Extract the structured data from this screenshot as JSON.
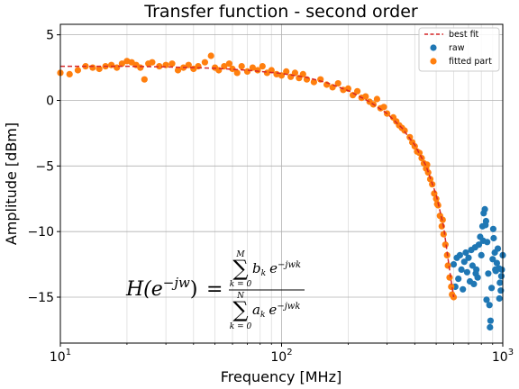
{
  "chart_data": {
    "type": "scatter",
    "title": "Transfer function - second order",
    "xlabel": "Frequency [MHz]",
    "ylabel": "Amplitude [dBm]",
    "xscale": "log",
    "xlim": [
      10,
      1000
    ],
    "ylim": [
      -18.5,
      5.8
    ],
    "x_ticks": [
      {
        "value": 10,
        "base": "10",
        "exp": "1"
      },
      {
        "value": 100,
        "base": "10",
        "exp": "2"
      },
      {
        "value": 1000,
        "base": "10",
        "exp": "3"
      }
    ],
    "y_ticks": [
      5,
      0,
      -5,
      -10,
      -15
    ],
    "y_tick_labels": [
      "5",
      "0",
      "−5",
      "−10",
      "−15"
    ],
    "grid": true,
    "legend_position": "top-right",
    "legend": [
      {
        "label": "best fit",
        "kind": "line",
        "color": "#d62728"
      },
      {
        "label": "raw",
        "kind": "marker",
        "color": "#1f77b4"
      },
      {
        "label": "fitted part",
        "kind": "marker",
        "color": "#ff7f0e"
      }
    ],
    "series": [
      {
        "name": "raw",
        "color": "#1f77b4",
        "points": [
          [
            600,
            -12.5
          ],
          [
            610,
            -14.2
          ],
          [
            620,
            -12.0
          ],
          [
            630,
            -13.6
          ],
          [
            640,
            -11.8
          ],
          [
            650,
            -12.9
          ],
          [
            660,
            -14.4
          ],
          [
            670,
            -12.3
          ],
          [
            680,
            -11.6
          ],
          [
            690,
            -13.1
          ],
          [
            700,
            -12.0
          ],
          [
            710,
            -13.8
          ],
          [
            720,
            -11.4
          ],
          [
            730,
            -12.6
          ],
          [
            740,
            -14.0
          ],
          [
            750,
            -11.2
          ],
          [
            760,
            -12.9
          ],
          [
            770,
            -13.5
          ],
          [
            780,
            -11.0
          ],
          [
            790,
            -10.4
          ],
          [
            800,
            -11.8
          ],
          [
            810,
            -9.6
          ],
          [
            820,
            -8.6
          ],
          [
            830,
            -8.3
          ],
          [
            840,
            -9.2
          ],
          [
            850,
            -10.8
          ],
          [
            860,
            -13.2
          ],
          [
            870,
            -15.6
          ],
          [
            880,
            -16.8
          ],
          [
            890,
            -14.3
          ],
          [
            900,
            -12.1
          ],
          [
            910,
            -10.5
          ],
          [
            920,
            -11.6
          ],
          [
            930,
            -13.0
          ],
          [
            940,
            -12.4
          ],
          [
            950,
            -11.3
          ],
          [
            960,
            -12.8
          ],
          [
            970,
            -13.9
          ],
          [
            980,
            -14.5
          ],
          [
            990,
            -12.9
          ],
          [
            1000,
            -11.8
          ],
          [
            755,
            -13.2
          ],
          [
            845,
            -15.2
          ],
          [
            875,
            -17.3
          ],
          [
            905,
            -9.8
          ],
          [
            925,
            -12.9
          ],
          [
            965,
            -15.1
          ],
          [
            985,
            -13.4
          ],
          [
            815,
            -10.7
          ],
          [
            835,
            -9.5
          ]
        ]
      },
      {
        "name": "fitted part",
        "color": "#ff7f0e",
        "points": [
          [
            10,
            2.1
          ],
          [
            11,
            2.0
          ],
          [
            12,
            2.3
          ],
          [
            13,
            2.6
          ],
          [
            14,
            2.5
          ],
          [
            15,
            2.4
          ],
          [
            16,
            2.6
          ],
          [
            17,
            2.7
          ],
          [
            18,
            2.5
          ],
          [
            19,
            2.8
          ],
          [
            20,
            3.0
          ],
          [
            21,
            2.9
          ],
          [
            22,
            2.7
          ],
          [
            23,
            2.5
          ],
          [
            24,
            1.6
          ],
          [
            25,
            2.8
          ],
          [
            26,
            2.9
          ],
          [
            28,
            2.6
          ],
          [
            30,
            2.7
          ],
          [
            32,
            2.8
          ],
          [
            34,
            2.3
          ],
          [
            36,
            2.5
          ],
          [
            38,
            2.7
          ],
          [
            40,
            2.4
          ],
          [
            42,
            2.6
          ],
          [
            45,
            2.9
          ],
          [
            48,
            3.4
          ],
          [
            50,
            2.5
          ],
          [
            52,
            2.3
          ],
          [
            55,
            2.6
          ],
          [
            58,
            2.8
          ],
          [
            60,
            2.4
          ],
          [
            63,
            2.1
          ],
          [
            66,
            2.6
          ],
          [
            70,
            2.2
          ],
          [
            74,
            2.5
          ],
          [
            78,
            2.3
          ],
          [
            82,
            2.6
          ],
          [
            86,
            2.1
          ],
          [
            90,
            2.3
          ],
          [
            95,
            2.0
          ],
          [
            100,
            1.9
          ],
          [
            105,
            2.2
          ],
          [
            110,
            1.8
          ],
          [
            115,
            2.1
          ],
          [
            120,
            1.7
          ],
          [
            125,
            2.0
          ],
          [
            130,
            1.6
          ],
          [
            140,
            1.4
          ],
          [
            150,
            1.6
          ],
          [
            160,
            1.2
          ],
          [
            170,
            1.0
          ],
          [
            180,
            1.3
          ],
          [
            190,
            0.8
          ],
          [
            200,
            0.9
          ],
          [
            210,
            0.4
          ],
          [
            220,
            0.7
          ],
          [
            230,
            0.2
          ],
          [
            240,
            0.3
          ],
          [
            250,
            -0.1
          ],
          [
            260,
            -0.3
          ],
          [
            270,
            0.1
          ],
          [
            280,
            -0.6
          ],
          [
            290,
            -0.5
          ],
          [
            300,
            -1.0
          ],
          [
            320,
            -1.3
          ],
          [
            340,
            -1.9
          ],
          [
            360,
            -2.3
          ],
          [
            380,
            -2.8
          ],
          [
            400,
            -3.5
          ],
          [
            420,
            -4.0
          ],
          [
            440,
            -4.8
          ],
          [
            460,
            -5.5
          ],
          [
            480,
            -6.4
          ],
          [
            500,
            -7.5
          ],
          [
            520,
            -8.8
          ],
          [
            540,
            -10.2
          ],
          [
            560,
            -11.8
          ],
          [
            575,
            -13.5
          ],
          [
            590,
            -14.8
          ],
          [
            600,
            -15.0
          ],
          [
            330,
            -1.6
          ],
          [
            350,
            -2.1
          ],
          [
            390,
            -3.2
          ],
          [
            410,
            -3.9
          ],
          [
            430,
            -4.4
          ],
          [
            450,
            -5.2
          ],
          [
            470,
            -6.0
          ],
          [
            490,
            -7.1
          ],
          [
            510,
            -8.0
          ],
          [
            530,
            -9.6
          ],
          [
            550,
            -11.0
          ],
          [
            565,
            -12.6
          ],
          [
            585,
            -14.2
          ],
          [
            455,
            -4.9
          ],
          [
            505,
            -7.9
          ],
          [
            535,
            -9.1
          ]
        ]
      },
      {
        "name": "best fit",
        "color": "#d62728",
        "style": "dashed",
        "points": [
          [
            10,
            2.6
          ],
          [
            20,
            2.6
          ],
          [
            30,
            2.55
          ],
          [
            50,
            2.45
          ],
          [
            70,
            2.3
          ],
          [
            100,
            2.05
          ],
          [
            130,
            1.75
          ],
          [
            160,
            1.35
          ],
          [
            200,
            0.75
          ],
          [
            250,
            -0.1
          ],
          [
            300,
            -1.0
          ],
          [
            350,
            -2.1
          ],
          [
            400,
            -3.4
          ],
          [
            450,
            -5.0
          ],
          [
            500,
            -7.2
          ],
          [
            540,
            -9.6
          ],
          [
            570,
            -12.5
          ],
          [
            590,
            -14.2
          ],
          [
            600,
            -15.0
          ]
        ]
      }
    ]
  },
  "formula": {
    "lhs": "H(e",
    "lhs_sup": "−jw",
    "lhs_close": ")",
    "eq": "=",
    "sum": "∑",
    "num_upper": "M",
    "num_lower": "k = 0",
    "num_coef": "b",
    "num_sub": "k",
    "num_e": "e",
    "num_sup": "−jwk",
    "den_upper": "N",
    "den_lower": "k = 0",
    "den_coef": "a",
    "den_sub": "k",
    "den_e": "e",
    "den_sup": "−jwk"
  }
}
